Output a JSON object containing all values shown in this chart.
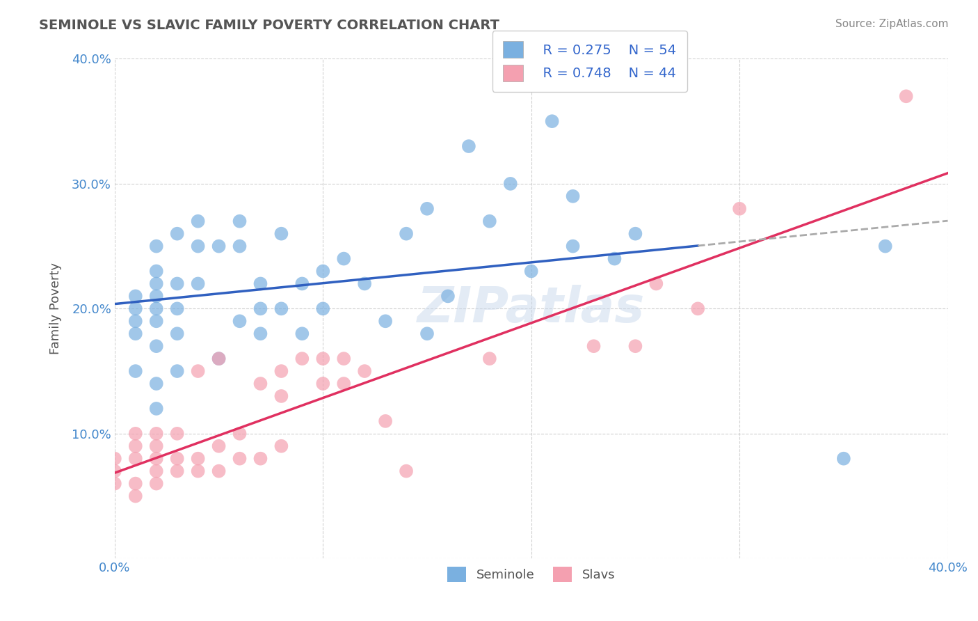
{
  "title": "SEMINOLE VS SLAVIC FAMILY POVERTY CORRELATION CHART",
  "source": "Source: ZipAtlas.com",
  "ylabel": "Family Poverty",
  "x_min": 0.0,
  "x_max": 0.4,
  "y_min": 0.0,
  "y_max": 0.4,
  "x_ticks": [
    0.0,
    0.1,
    0.2,
    0.3,
    0.4
  ],
  "y_ticks": [
    0.0,
    0.1,
    0.2,
    0.3,
    0.4
  ],
  "watermark": "ZIPatlas",
  "legend_r1": "R = 0.275",
  "legend_n1": "N = 54",
  "legend_r2": "R = 0.748",
  "legend_n2": "N = 44",
  "seminole_color": "#7ab0e0",
  "slavic_color": "#f4a0b0",
  "seminole_line_color": "#3060c0",
  "slavic_line_color": "#e03060",
  "background_color": "#ffffff",
  "grid_color": "#cccccc",
  "seminole_x": [
    0.01,
    0.01,
    0.01,
    0.01,
    0.01,
    0.02,
    0.02,
    0.02,
    0.02,
    0.02,
    0.02,
    0.02,
    0.02,
    0.02,
    0.03,
    0.03,
    0.03,
    0.03,
    0.03,
    0.04,
    0.04,
    0.04,
    0.05,
    0.05,
    0.06,
    0.06,
    0.06,
    0.07,
    0.07,
    0.07,
    0.08,
    0.08,
    0.09,
    0.09,
    0.1,
    0.1,
    0.11,
    0.12,
    0.13,
    0.14,
    0.15,
    0.15,
    0.16,
    0.17,
    0.18,
    0.19,
    0.2,
    0.21,
    0.22,
    0.22,
    0.24,
    0.25,
    0.35,
    0.37
  ],
  "seminole_y": [
    0.15,
    0.18,
    0.19,
    0.2,
    0.21,
    0.12,
    0.14,
    0.17,
    0.19,
    0.2,
    0.21,
    0.22,
    0.23,
    0.25,
    0.15,
    0.18,
    0.2,
    0.22,
    0.26,
    0.22,
    0.25,
    0.27,
    0.16,
    0.25,
    0.19,
    0.25,
    0.27,
    0.18,
    0.2,
    0.22,
    0.2,
    0.26,
    0.18,
    0.22,
    0.2,
    0.23,
    0.24,
    0.22,
    0.19,
    0.26,
    0.18,
    0.28,
    0.21,
    0.33,
    0.27,
    0.3,
    0.23,
    0.35,
    0.29,
    0.25,
    0.24,
    0.26,
    0.08,
    0.25
  ],
  "slavic_x": [
    0.0,
    0.0,
    0.0,
    0.01,
    0.01,
    0.01,
    0.01,
    0.01,
    0.02,
    0.02,
    0.02,
    0.02,
    0.02,
    0.03,
    0.03,
    0.03,
    0.04,
    0.04,
    0.04,
    0.05,
    0.05,
    0.05,
    0.06,
    0.06,
    0.07,
    0.07,
    0.08,
    0.08,
    0.08,
    0.09,
    0.1,
    0.1,
    0.11,
    0.11,
    0.12,
    0.13,
    0.14,
    0.18,
    0.23,
    0.25,
    0.26,
    0.28,
    0.3,
    0.38
  ],
  "slavic_y": [
    0.06,
    0.07,
    0.08,
    0.05,
    0.06,
    0.08,
    0.09,
    0.1,
    0.06,
    0.07,
    0.08,
    0.09,
    0.1,
    0.07,
    0.08,
    0.1,
    0.07,
    0.08,
    0.15,
    0.07,
    0.09,
    0.16,
    0.08,
    0.1,
    0.08,
    0.14,
    0.09,
    0.13,
    0.15,
    0.16,
    0.14,
    0.16,
    0.14,
    0.16,
    0.15,
    0.11,
    0.07,
    0.16,
    0.17,
    0.17,
    0.22,
    0.2,
    0.28,
    0.37
  ]
}
